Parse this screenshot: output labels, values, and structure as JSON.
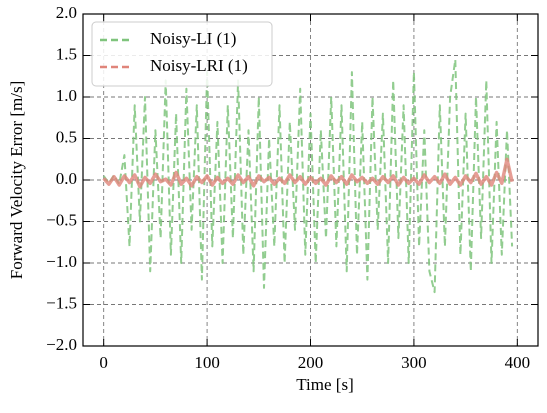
{
  "chart_data": {
    "type": "line",
    "xlabel": "Time [s]",
    "ylabel": "Forward Velocity Error [m/s]",
    "x": [
      0,
      5,
      10,
      15,
      20,
      25,
      30,
      35,
      40,
      45,
      50,
      55,
      60,
      65,
      70,
      75,
      80,
      85,
      90,
      95,
      100,
      105,
      110,
      115,
      120,
      125,
      130,
      135,
      140,
      145,
      150,
      155,
      160,
      165,
      170,
      175,
      180,
      185,
      190,
      195,
      200,
      205,
      210,
      215,
      220,
      225,
      230,
      235,
      240,
      245,
      250,
      255,
      260,
      265,
      270,
      275,
      280,
      285,
      290,
      295,
      300,
      305,
      310,
      315,
      320,
      325,
      330,
      335,
      340,
      345,
      350,
      355,
      360,
      365,
      370,
      375,
      380,
      385,
      390,
      395
    ],
    "series": [
      {
        "name": "Noisy-LI (1)",
        "color": "#7fc47c",
        "dashed": true,
        "values": [
          0.05,
          -0.04,
          0.06,
          -0.05,
          0.3,
          -0.8,
          0.9,
          -0.5,
          1.0,
          -1.1,
          0.6,
          -0.7,
          1.2,
          -0.9,
          0.8,
          -1.0,
          1.1,
          -0.6,
          0.9,
          -1.2,
          1.3,
          -0.8,
          0.7,
          -1.0,
          0.9,
          -0.7,
          1.2,
          -0.9,
          0.6,
          -1.1,
          1.0,
          -1.3,
          0.5,
          -0.8,
          0.9,
          -1.0,
          0.7,
          -0.6,
          1.1,
          -0.9,
          0.8,
          -1.0,
          0.6,
          -0.7,
          1.0,
          -0.8,
          0.9,
          -1.1,
          1.3,
          -0.9,
          0.7,
          -1.2,
          1.0,
          -0.6,
          0.8,
          -1.0,
          1.2,
          -0.7,
          0.9,
          -1.0,
          1.3,
          -0.8,
          0.6,
          -1.1,
          -1.35,
          0.9,
          -0.8,
          1.0,
          1.45,
          -0.9,
          0.8,
          -1.1,
          1.0,
          -0.7,
          1.2,
          -1.0,
          0.7,
          -0.9,
          0.6,
          -0.8
        ]
      },
      {
        "name": "Noisy-LRI (1)",
        "color": "#e0857a",
        "dashed": false,
        "values": [
          0.02,
          -0.05,
          0.04,
          -0.06,
          0.05,
          -0.03,
          0.06,
          -0.08,
          0.03,
          -0.04,
          0.07,
          -0.02,
          0.01,
          -0.06,
          0.09,
          -0.05,
          0.02,
          -0.07,
          0.04,
          -0.03,
          0.05,
          -0.06,
          0.03,
          -0.04,
          0.02,
          -0.05,
          0.06,
          -0.03,
          0.04,
          -0.07,
          0.05,
          -0.02,
          0.03,
          -0.05,
          0.02,
          -0.04,
          0.06,
          -0.03,
          0.04,
          -0.05,
          0.03,
          -0.04,
          0.02,
          -0.06,
          0.05,
          -0.03,
          0.04,
          -0.05,
          0.06,
          -0.02,
          0.03,
          -0.04,
          0.02,
          -0.05,
          0.04,
          -0.03,
          0.05,
          -0.06,
          0.03,
          -0.04,
          0.02,
          -0.05,
          0.06,
          -0.03,
          0.04,
          -0.04,
          0.07,
          -0.05,
          0.03,
          -0.06,
          0.05,
          -0.03,
          0.08,
          -0.05,
          0.04,
          -0.06,
          0.09,
          -0.04,
          0.25,
          -0.02
        ]
      }
    ],
    "xlim": [
      -20,
      420
    ],
    "xticks": [
      0,
      100,
      200,
      300,
      400
    ],
    "ylim": [
      -2,
      2
    ],
    "yticks": [
      {
        "value": -2,
        "label": "−2.0"
      },
      {
        "value": -1.5,
        "label": "−1.5"
      },
      {
        "value": -1,
        "label": "−1.0"
      },
      {
        "value": -0.5,
        "label": "−0.5"
      },
      {
        "value": 0,
        "label": "0.0"
      },
      {
        "value": 0.5,
        "label": "0.5"
      },
      {
        "value": 1,
        "label": "1.0"
      },
      {
        "value": 1.5,
        "label": "1.5"
      },
      {
        "value": 2,
        "label": "2.0"
      }
    ],
    "grid": true,
    "legend": "upper left"
  }
}
